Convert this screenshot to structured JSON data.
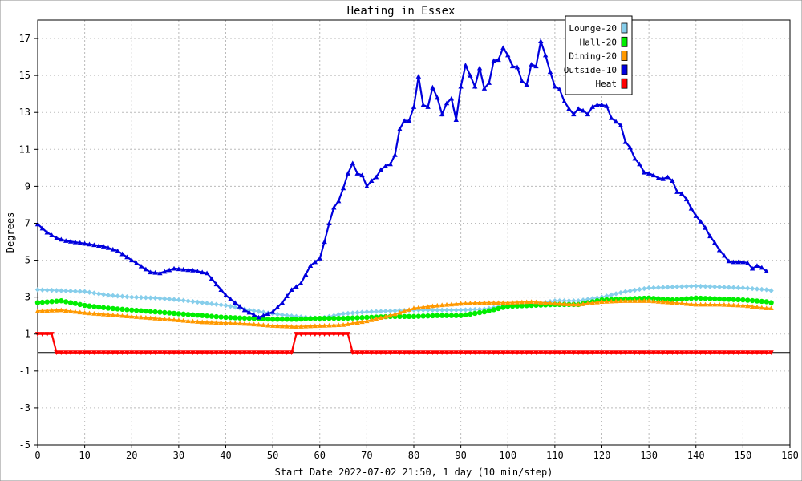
{
  "chart_data": {
    "type": "line",
    "title": "Heating in Essex",
    "xlabel": "Start Date 2022-07-02 21:50, 1 day (10 min/step)",
    "ylabel": "Degrees",
    "xlim": [
      0,
      160
    ],
    "ylim": [
      -5,
      18
    ],
    "xticks": [
      0,
      10,
      20,
      30,
      40,
      50,
      60,
      70,
      80,
      90,
      100,
      110,
      120,
      130,
      140,
      150,
      160
    ],
    "yticks": [
      -5,
      -3,
      -1,
      1,
      3,
      5,
      7,
      9,
      11,
      13,
      15,
      17
    ],
    "grid": true,
    "legend_position": "top-right",
    "series": [
      {
        "name": "Lounge-20",
        "color": "#87ceeb",
        "marker": "diamond",
        "points": [
          [
            0,
            3.4
          ],
          [
            5,
            3.35
          ],
          [
            10,
            3.3
          ],
          [
            15,
            3.1
          ],
          [
            20,
            3.0
          ],
          [
            25,
            2.95
          ],
          [
            30,
            2.85
          ],
          [
            35,
            2.7
          ],
          [
            40,
            2.55
          ],
          [
            45,
            2.3
          ],
          [
            50,
            2.1
          ],
          [
            55,
            1.95
          ],
          [
            60,
            1.85
          ],
          [
            65,
            2.1
          ],
          [
            70,
            2.2
          ],
          [
            75,
            2.25
          ],
          [
            80,
            2.3
          ],
          [
            85,
            2.3
          ],
          [
            90,
            2.3
          ],
          [
            95,
            2.35
          ],
          [
            100,
            2.55
          ],
          [
            105,
            2.6
          ],
          [
            110,
            2.8
          ],
          [
            115,
            2.8
          ],
          [
            120,
            3.0
          ],
          [
            125,
            3.3
          ],
          [
            130,
            3.5
          ],
          [
            135,
            3.55
          ],
          [
            140,
            3.6
          ],
          [
            145,
            3.55
          ],
          [
            150,
            3.5
          ],
          [
            155,
            3.4
          ],
          [
            156,
            3.35
          ]
        ]
      },
      {
        "name": "Hall-20",
        "color": "#00ee00",
        "marker": "circle",
        "points": [
          [
            0,
            2.7
          ],
          [
            5,
            2.8
          ],
          [
            10,
            2.55
          ],
          [
            15,
            2.4
          ],
          [
            20,
            2.3
          ],
          [
            25,
            2.2
          ],
          [
            30,
            2.1
          ],
          [
            35,
            2.0
          ],
          [
            40,
            1.9
          ],
          [
            45,
            1.85
          ],
          [
            50,
            1.8
          ],
          [
            55,
            1.8
          ],
          [
            60,
            1.85
          ],
          [
            65,
            1.85
          ],
          [
            70,
            1.9
          ],
          [
            75,
            1.95
          ],
          [
            80,
            1.95
          ],
          [
            85,
            2.0
          ],
          [
            90,
            2.0
          ],
          [
            95,
            2.2
          ],
          [
            100,
            2.5
          ],
          [
            105,
            2.55
          ],
          [
            110,
            2.6
          ],
          [
            115,
            2.6
          ],
          [
            120,
            2.85
          ],
          [
            125,
            2.9
          ],
          [
            130,
            2.95
          ],
          [
            135,
            2.85
          ],
          [
            140,
            2.95
          ],
          [
            145,
            2.9
          ],
          [
            150,
            2.85
          ],
          [
            155,
            2.75
          ],
          [
            156,
            2.7
          ]
        ]
      },
      {
        "name": "Dining-20",
        "color": "#ff9900",
        "marker": "triangle-up",
        "points": [
          [
            0,
            2.25
          ],
          [
            5,
            2.3
          ],
          [
            10,
            2.15
          ],
          [
            15,
            2.05
          ],
          [
            20,
            1.95
          ],
          [
            25,
            1.85
          ],
          [
            30,
            1.75
          ],
          [
            35,
            1.65
          ],
          [
            40,
            1.6
          ],
          [
            45,
            1.55
          ],
          [
            50,
            1.45
          ],
          [
            55,
            1.4
          ],
          [
            60,
            1.45
          ],
          [
            65,
            1.5
          ],
          [
            70,
            1.7
          ],
          [
            75,
            2.0
          ],
          [
            80,
            2.4
          ],
          [
            85,
            2.55
          ],
          [
            90,
            2.65
          ],
          [
            95,
            2.7
          ],
          [
            100,
            2.7
          ],
          [
            105,
            2.75
          ],
          [
            110,
            2.65
          ],
          [
            115,
            2.6
          ],
          [
            120,
            2.75
          ],
          [
            125,
            2.8
          ],
          [
            130,
            2.8
          ],
          [
            135,
            2.7
          ],
          [
            140,
            2.6
          ],
          [
            145,
            2.6
          ],
          [
            150,
            2.55
          ],
          [
            155,
            2.4
          ],
          [
            156,
            2.4
          ]
        ]
      },
      {
        "name": "Outside-10",
        "color": "#0000dd",
        "marker": "triangle-up",
        "points": [
          [
            0,
            6.95
          ],
          [
            2,
            6.5
          ],
          [
            4,
            6.2
          ],
          [
            6,
            6.05
          ],
          [
            10,
            5.9
          ],
          [
            14,
            5.75
          ],
          [
            17,
            5.5
          ],
          [
            20,
            5.0
          ],
          [
            24,
            4.35
          ],
          [
            26,
            4.3
          ],
          [
            29,
            4.55
          ],
          [
            33,
            4.45
          ],
          [
            36,
            4.3
          ],
          [
            38,
            3.7
          ],
          [
            40,
            3.1
          ],
          [
            42,
            2.7
          ],
          [
            44,
            2.3
          ],
          [
            47,
            1.9
          ],
          [
            50,
            2.2
          ],
          [
            52,
            2.7
          ],
          [
            54,
            3.4
          ],
          [
            56,
            3.75
          ],
          [
            58,
            4.7
          ],
          [
            60,
            5.1
          ],
          [
            61,
            6.0
          ],
          [
            62,
            7.0
          ],
          [
            63,
            7.85
          ],
          [
            64,
            8.2
          ],
          [
            65,
            8.9
          ],
          [
            66,
            9.7
          ],
          [
            67,
            10.25
          ],
          [
            68,
            9.7
          ],
          [
            69,
            9.6
          ],
          [
            70,
            9.0
          ],
          [
            71,
            9.3
          ],
          [
            72,
            9.5
          ],
          [
            73,
            9.9
          ],
          [
            74,
            10.1
          ],
          [
            75,
            10.2
          ],
          [
            76,
            10.7
          ],
          [
            77,
            12.1
          ],
          [
            78,
            12.55
          ],
          [
            79,
            12.55
          ],
          [
            80,
            13.3
          ],
          [
            81,
            14.95
          ],
          [
            82,
            13.4
          ],
          [
            83,
            13.3
          ],
          [
            84,
            14.35
          ],
          [
            85,
            13.8
          ],
          [
            86,
            12.9
          ],
          [
            87,
            13.5
          ],
          [
            88,
            13.75
          ],
          [
            89,
            12.6
          ],
          [
            90,
            14.4
          ],
          [
            91,
            15.55
          ],
          [
            92,
            15.0
          ],
          [
            93,
            14.4
          ],
          [
            94,
            15.4
          ],
          [
            95,
            14.3
          ],
          [
            96,
            14.6
          ],
          [
            97,
            15.8
          ],
          [
            98,
            15.85
          ],
          [
            99,
            16.5
          ],
          [
            100,
            16.1
          ],
          [
            101,
            15.5
          ],
          [
            102,
            15.45
          ],
          [
            103,
            14.7
          ],
          [
            104,
            14.5
          ],
          [
            105,
            15.6
          ],
          [
            106,
            15.5
          ],
          [
            107,
            16.85
          ],
          [
            108,
            16.1
          ],
          [
            109,
            15.2
          ],
          [
            110,
            14.4
          ],
          [
            111,
            14.25
          ],
          [
            112,
            13.6
          ],
          [
            113,
            13.2
          ],
          [
            114,
            12.9
          ],
          [
            115,
            13.2
          ],
          [
            116,
            13.1
          ],
          [
            117,
            12.9
          ],
          [
            118,
            13.3
          ],
          [
            119,
            13.4
          ],
          [
            120,
            13.4
          ],
          [
            121,
            13.35
          ],
          [
            122,
            12.7
          ],
          [
            123,
            12.5
          ],
          [
            124,
            12.3
          ],
          [
            125,
            11.4
          ],
          [
            126,
            11.1
          ],
          [
            127,
            10.5
          ],
          [
            128,
            10.2
          ],
          [
            129,
            9.75
          ],
          [
            130,
            9.7
          ],
          [
            131,
            9.6
          ],
          [
            132,
            9.45
          ],
          [
            133,
            9.4
          ],
          [
            134,
            9.5
          ],
          [
            135,
            9.3
          ],
          [
            136,
            8.7
          ],
          [
            137,
            8.6
          ],
          [
            138,
            8.3
          ],
          [
            139,
            7.8
          ],
          [
            140,
            7.4
          ],
          [
            141,
            7.1
          ],
          [
            142,
            6.75
          ],
          [
            143,
            6.3
          ],
          [
            144,
            5.95
          ],
          [
            145,
            5.55
          ],
          [
            146,
            5.25
          ],
          [
            147,
            4.95
          ],
          [
            148,
            4.9
          ],
          [
            150,
            4.9
          ],
          [
            151,
            4.85
          ],
          [
            152,
            4.55
          ],
          [
            153,
            4.7
          ],
          [
            154,
            4.6
          ],
          [
            155,
            4.4
          ]
        ]
      },
      {
        "name": "Heat",
        "color": "#ff0000",
        "marker": "triangle-down",
        "points": [
          [
            0,
            1.0
          ],
          [
            3,
            1.0
          ],
          [
            4,
            0.0
          ],
          [
            54,
            0.0
          ],
          [
            55,
            1.0
          ],
          [
            66,
            1.0
          ],
          [
            67,
            0.0
          ],
          [
            156,
            0.0
          ]
        ]
      }
    ]
  }
}
